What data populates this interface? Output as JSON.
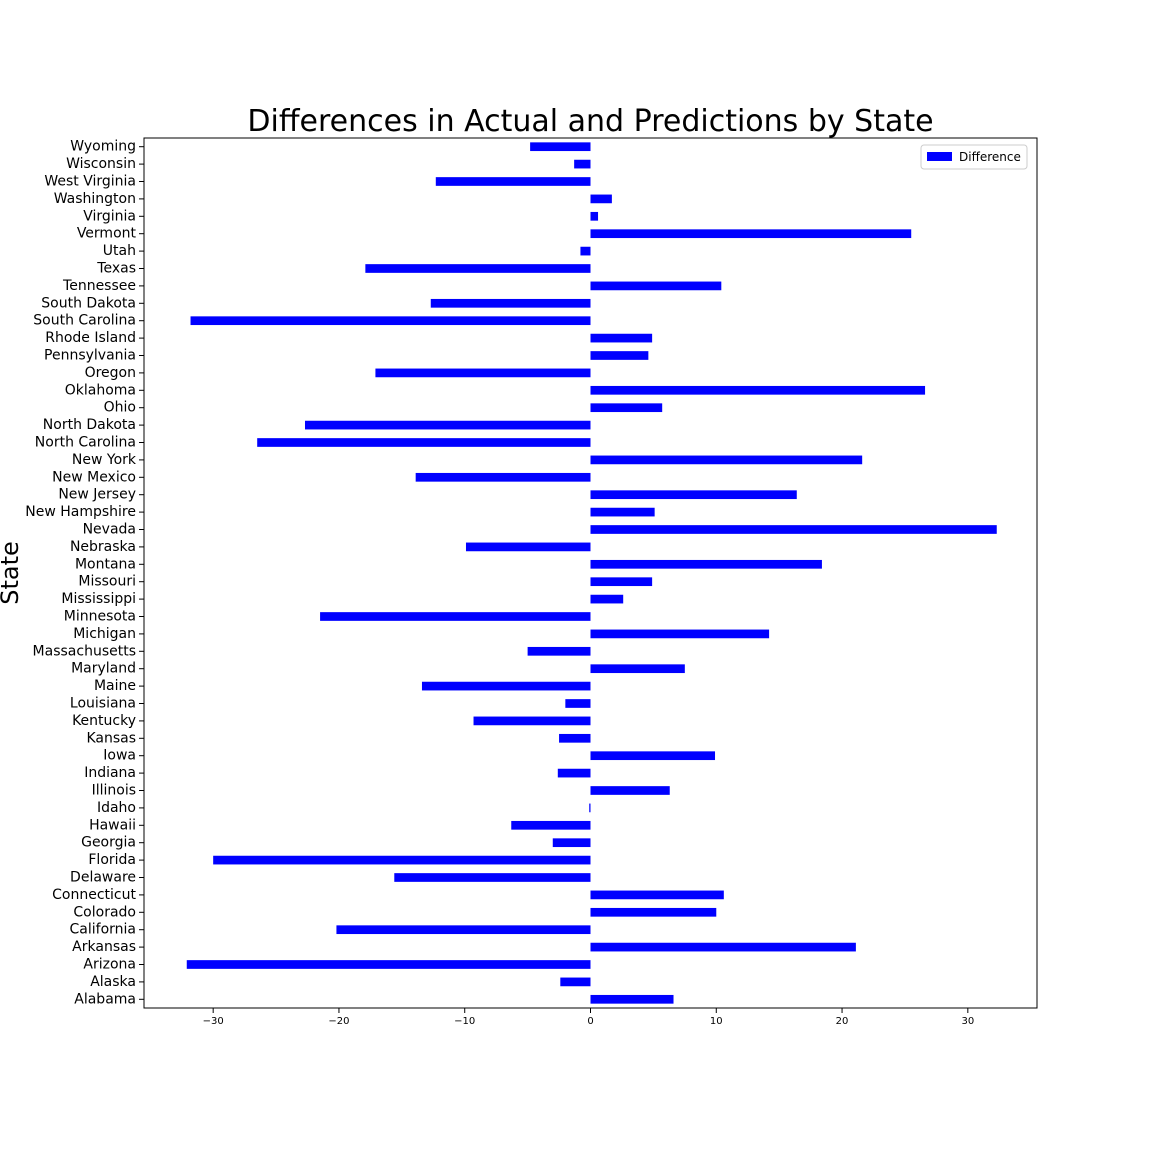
{
  "chart_data": {
    "type": "bar",
    "orientation": "horizontal",
    "title": "Differences in Actual and Predictions by State",
    "xlabel": "",
    "ylabel": "State",
    "xlim": [
      -35.5,
      35.5
    ],
    "xticks": [
      -30,
      -20,
      -10,
      0,
      10,
      20,
      30
    ],
    "xtick_labels": [
      "−30",
      "−20",
      "−10",
      "0",
      "10",
      "20",
      "30"
    ],
    "grid": false,
    "legend": {
      "position": "top-right",
      "entries": [
        "Difference"
      ]
    },
    "categories": [
      "Alabama",
      "Alaska",
      "Arizona",
      "Arkansas",
      "California",
      "Colorado",
      "Connecticut",
      "Delaware",
      "Florida",
      "Georgia",
      "Hawaii",
      "Idaho",
      "Illinois",
      "Indiana",
      "Iowa",
      "Kansas",
      "Kentucky",
      "Louisiana",
      "Maine",
      "Maryland",
      "Massachusetts",
      "Michigan",
      "Minnesota",
      "Mississippi",
      "Missouri",
      "Montana",
      "Nebraska",
      "Nevada",
      "New Hampshire",
      "New Jersey",
      "New Mexico",
      "New York",
      "North Carolina",
      "North Dakota",
      "Ohio",
      "Oklahoma",
      "Oregon",
      "Pennsylvania",
      "Rhode Island",
      "South Carolina",
      "South Dakota",
      "Tennessee",
      "Texas",
      "Utah",
      "Vermont",
      "Virginia",
      "Washington",
      "West Virginia",
      "Wisconsin",
      "Wyoming"
    ],
    "series": [
      {
        "name": "Difference",
        "color": "#0000ff",
        "values": [
          6.6,
          -2.4,
          -32.1,
          21.1,
          -20.2,
          10.0,
          10.6,
          -15.6,
          -30.0,
          -3.0,
          -6.3,
          -0.1,
          6.3,
          -2.6,
          9.9,
          -2.5,
          -9.3,
          -2.0,
          -13.4,
          7.5,
          -5.0,
          14.2,
          -21.5,
          2.6,
          4.9,
          18.4,
          -9.9,
          32.3,
          5.1,
          16.4,
          -13.9,
          21.6,
          -26.5,
          -22.7,
          5.7,
          26.6,
          -17.1,
          4.6,
          4.9,
          -31.8,
          -12.7,
          10.4,
          -17.9,
          -0.8,
          25.5,
          0.6,
          1.7,
          -12.3,
          -1.3,
          -4.8
        ]
      }
    ]
  }
}
